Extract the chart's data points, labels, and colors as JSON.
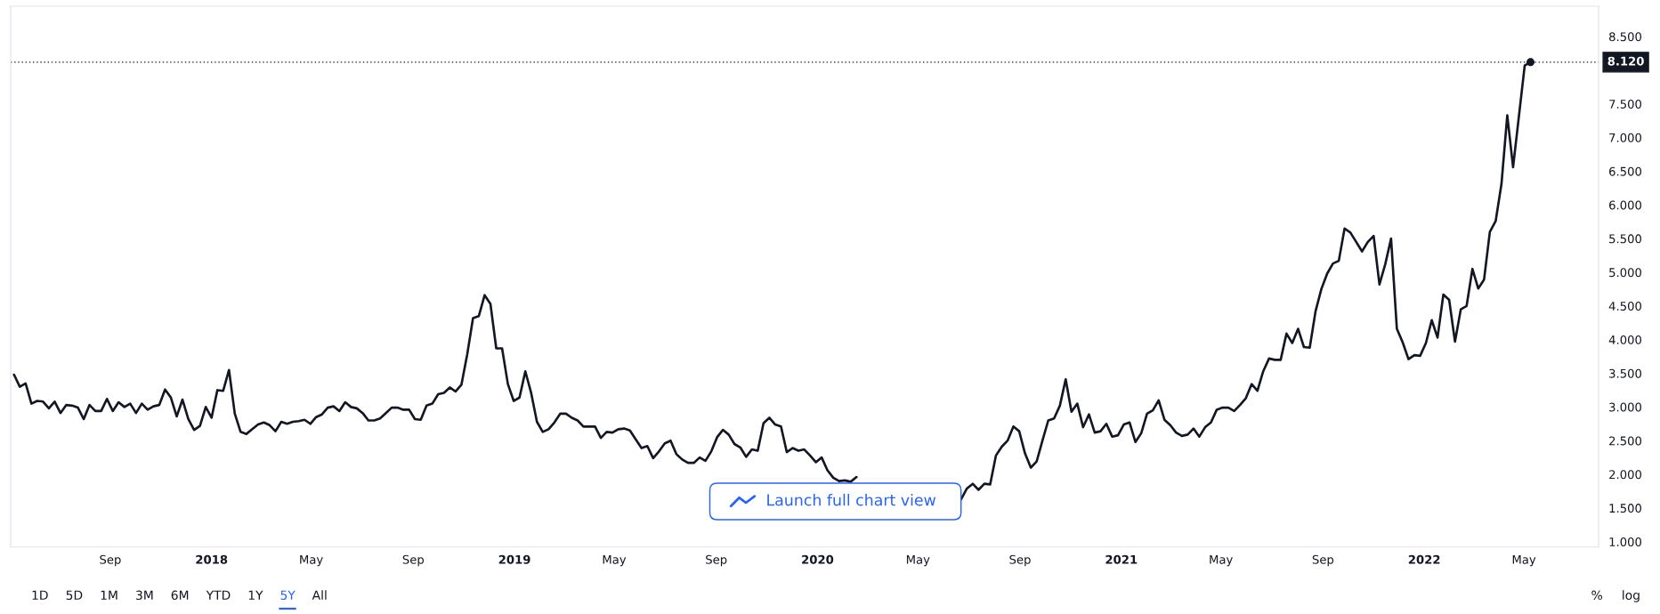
{
  "chart_data": {
    "type": "line",
    "x": [
      "2017-05-08",
      "2017-05-15",
      "2017-05-22",
      "2017-05-29",
      "2017-06-05",
      "2017-06-12",
      "2017-06-19",
      "2017-06-26",
      "2017-07-03",
      "2017-07-10",
      "2017-07-17",
      "2017-07-24",
      "2017-07-31",
      "2017-08-07",
      "2017-08-14",
      "2017-08-21",
      "2017-08-28",
      "2017-09-04",
      "2017-09-11",
      "2017-09-18",
      "2017-09-25",
      "2017-10-02",
      "2017-10-09",
      "2017-10-16",
      "2017-10-23",
      "2017-10-30",
      "2017-11-06",
      "2017-11-13",
      "2017-11-20",
      "2017-11-27",
      "2017-12-04",
      "2017-12-11",
      "2017-12-18",
      "2017-12-25",
      "2018-01-01",
      "2018-01-08",
      "2018-01-15",
      "2018-01-22",
      "2018-01-29",
      "2018-02-05",
      "2018-02-12",
      "2018-02-19",
      "2018-02-26",
      "2018-03-05",
      "2018-03-12",
      "2018-03-19",
      "2018-03-26",
      "2018-04-02",
      "2018-04-09",
      "2018-04-16",
      "2018-04-23",
      "2018-04-30",
      "2018-05-07",
      "2018-05-14",
      "2018-05-21",
      "2018-05-28",
      "2018-06-04",
      "2018-06-11",
      "2018-06-18",
      "2018-06-25",
      "2018-07-02",
      "2018-07-09",
      "2018-07-16",
      "2018-07-23",
      "2018-07-30",
      "2018-08-06",
      "2018-08-13",
      "2018-08-20",
      "2018-08-27",
      "2018-09-03",
      "2018-09-10",
      "2018-09-17",
      "2018-09-24",
      "2018-10-01",
      "2018-10-08",
      "2018-10-15",
      "2018-10-22",
      "2018-10-29",
      "2018-11-05",
      "2018-11-12",
      "2018-11-19",
      "2018-11-26",
      "2018-12-03",
      "2018-12-10",
      "2018-12-17",
      "2018-12-24",
      "2018-12-31",
      "2019-01-07",
      "2019-01-14",
      "2019-01-21",
      "2019-01-28",
      "2019-02-04",
      "2019-02-11",
      "2019-02-18",
      "2019-02-25",
      "2019-03-04",
      "2019-03-11",
      "2019-03-18",
      "2019-03-25",
      "2019-04-01",
      "2019-04-08",
      "2019-04-15",
      "2019-04-22",
      "2019-04-29",
      "2019-05-06",
      "2019-05-13",
      "2019-05-20",
      "2019-05-27",
      "2019-06-03",
      "2019-06-10",
      "2019-06-17",
      "2019-06-24",
      "2019-07-01",
      "2019-07-08",
      "2019-07-15",
      "2019-07-22",
      "2019-07-29",
      "2019-08-05",
      "2019-08-12",
      "2019-08-19",
      "2019-08-26",
      "2019-09-02",
      "2019-09-09",
      "2019-09-16",
      "2019-09-23",
      "2019-09-30",
      "2019-10-07",
      "2019-10-14",
      "2019-10-21",
      "2019-10-28",
      "2019-11-04",
      "2019-11-11",
      "2019-11-18",
      "2019-11-25",
      "2019-12-02",
      "2019-12-09",
      "2019-12-16",
      "2019-12-23",
      "2019-12-30",
      "2020-01-06",
      "2020-01-13",
      "2020-01-20",
      "2020-01-27",
      "2020-02-03",
      "2020-02-10",
      "2020-02-17",
      "2020-04-06",
      "2020-06-22",
      "2020-06-29",
      "2020-07-06",
      "2020-07-13",
      "2020-07-20",
      "2020-07-27",
      "2020-08-03",
      "2020-08-10",
      "2020-08-17",
      "2020-08-24",
      "2020-08-31",
      "2020-09-07",
      "2020-09-14",
      "2020-09-21",
      "2020-09-28",
      "2020-10-05",
      "2020-10-12",
      "2020-10-19",
      "2020-10-26",
      "2020-11-02",
      "2020-11-09",
      "2020-11-16",
      "2020-11-23",
      "2020-11-30",
      "2020-12-07",
      "2020-12-14",
      "2020-12-21",
      "2020-12-28",
      "2021-01-04",
      "2021-01-11",
      "2021-01-18",
      "2021-01-25",
      "2021-02-01",
      "2021-02-08",
      "2021-02-15",
      "2021-02-22",
      "2021-03-01",
      "2021-03-08",
      "2021-03-15",
      "2021-03-22",
      "2021-03-29",
      "2021-04-05",
      "2021-04-12",
      "2021-04-19",
      "2021-04-26",
      "2021-05-03",
      "2021-05-10",
      "2021-05-17",
      "2021-05-24",
      "2021-05-31",
      "2021-06-07",
      "2021-06-14",
      "2021-06-21",
      "2021-06-28",
      "2021-07-05",
      "2021-07-12",
      "2021-07-19",
      "2021-07-26",
      "2021-08-02",
      "2021-08-09",
      "2021-08-16",
      "2021-08-23",
      "2021-08-30",
      "2021-09-06",
      "2021-09-13",
      "2021-09-20",
      "2021-09-27",
      "2021-10-04",
      "2021-10-11",
      "2021-10-18",
      "2021-10-25",
      "2021-11-01",
      "2021-11-08",
      "2021-11-15",
      "2021-11-22",
      "2021-11-29",
      "2021-12-06",
      "2021-12-13",
      "2021-12-20",
      "2021-12-27",
      "2022-01-03",
      "2022-01-10",
      "2022-01-17",
      "2022-01-24",
      "2022-01-31",
      "2022-02-07",
      "2022-02-14",
      "2022-02-21",
      "2022-02-28",
      "2022-03-07",
      "2022-03-14",
      "2022-03-21",
      "2022-03-28",
      "2022-04-04",
      "2022-04-11",
      "2022-04-18",
      "2022-05-02",
      "2022-05-09"
    ],
    "series": [
      {
        "color": "#131722",
        "values": [
          3.48,
          3.3,
          3.35,
          3.05,
          3.09,
          3.08,
          2.98,
          3.08,
          2.91,
          3.03,
          3.02,
          2.99,
          2.82,
          3.03,
          2.94,
          2.94,
          3.12,
          2.94,
          3.07,
          3.0,
          3.05,
          2.91,
          3.05,
          2.96,
          3.01,
          3.03,
          3.26,
          3.14,
          2.86,
          3.11,
          2.82,
          2.66,
          2.72,
          3.0,
          2.84,
          3.25,
          3.24,
          3.55,
          2.9,
          2.63,
          2.6,
          2.67,
          2.74,
          2.77,
          2.73,
          2.64,
          2.78,
          2.75,
          2.78,
          2.79,
          2.81,
          2.75,
          2.85,
          2.89,
          2.99,
          3.01,
          2.94,
          3.07,
          3.0,
          2.98,
          2.91,
          2.8,
          2.8,
          2.83,
          2.91,
          2.99,
          2.99,
          2.96,
          2.96,
          2.82,
          2.81,
          3.02,
          3.05,
          3.19,
          3.21,
          3.29,
          3.23,
          3.33,
          3.78,
          4.32,
          4.35,
          4.66,
          4.53,
          3.87,
          3.87,
          3.34,
          3.09,
          3.14,
          3.53,
          3.21,
          2.78,
          2.63,
          2.67,
          2.77,
          2.9,
          2.9,
          2.84,
          2.8,
          2.71,
          2.71,
          2.71,
          2.54,
          2.63,
          2.62,
          2.67,
          2.68,
          2.65,
          2.52,
          2.39,
          2.42,
          2.24,
          2.34,
          2.46,
          2.5,
          2.3,
          2.22,
          2.17,
          2.17,
          2.25,
          2.2,
          2.34,
          2.55,
          2.66,
          2.59,
          2.45,
          2.4,
          2.26,
          2.37,
          2.35,
          2.76,
          2.84,
          2.74,
          2.71,
          2.33,
          2.39,
          2.35,
          2.37,
          2.28,
          2.18,
          2.25,
          2.06,
          1.95,
          1.9,
          1.91,
          1.89,
          1.96,
          null,
          1.63,
          1.79,
          1.86,
          1.77,
          1.86,
          1.85,
          2.28,
          2.41,
          2.5,
          2.71,
          2.64,
          2.31,
          2.1,
          2.19,
          2.5,
          2.8,
          2.83,
          3.02,
          3.41,
          2.93,
          3.05,
          2.7,
          2.89,
          2.62,
          2.64,
          2.75,
          2.56,
          2.58,
          2.74,
          2.77,
          2.48,
          2.61,
          2.9,
          2.95,
          3.1,
          2.81,
          2.73,
          2.62,
          2.57,
          2.59,
          2.68,
          2.56,
          2.7,
          2.77,
          2.96,
          2.99,
          2.99,
          2.94,
          3.03,
          3.13,
          3.34,
          3.24,
          3.53,
          3.72,
          3.7,
          3.7,
          4.09,
          3.95,
          4.16,
          3.89,
          3.88,
          4.42,
          4.75,
          4.98,
          5.13,
          5.17,
          5.65,
          5.59,
          5.45,
          5.31,
          5.45,
          5.54,
          4.82,
          5.12,
          5.5,
          4.16,
          3.96,
          3.71,
          3.77,
          3.76,
          3.95,
          4.29,
          4.03,
          4.67,
          4.59,
          3.97,
          4.45,
          4.5,
          5.05,
          4.76,
          4.89,
          5.6,
          5.76,
          6.31,
          7.33,
          6.56,
          8.07,
          8.12
        ]
      },
      {
        "type": "scatter",
        "marker": "circle",
        "color": "#131722",
        "x": [
          "2022-05-09"
        ],
        "values": [
          8.12
        ]
      }
    ],
    "xlim": [
      "2017-05-04",
      "2022-07-30"
    ],
    "xticks": [
      {
        "value": "2017-09-01",
        "label": "Sep"
      },
      {
        "value": "2018-01-01",
        "label": "2018"
      },
      {
        "value": "2018-05-01",
        "label": "May"
      },
      {
        "value": "2018-09-01",
        "label": "Sep"
      },
      {
        "value": "2019-01-01",
        "label": "2019"
      },
      {
        "value": "2019-05-01",
        "label": "May"
      },
      {
        "value": "2019-09-01",
        "label": "Sep"
      },
      {
        "value": "2020-01-01",
        "label": "2020"
      },
      {
        "value": "2020-05-01",
        "label": "May"
      },
      {
        "value": "2020-09-01",
        "label": "Sep"
      },
      {
        "value": "2021-01-01",
        "label": "2021"
      },
      {
        "value": "2021-05-01",
        "label": "May"
      },
      {
        "value": "2021-09-01",
        "label": "Sep"
      },
      {
        "value": "2022-01-01",
        "label": "2022"
      },
      {
        "value": "2022-05-01",
        "label": "May"
      }
    ],
    "ylim": [
      0.92,
      8.95
    ],
    "yticks": [
      {
        "value": 1,
        "label": "1.000"
      },
      {
        "value": 1.5,
        "label": "1.500"
      },
      {
        "value": 2,
        "label": "2.000"
      },
      {
        "value": 2.5,
        "label": "2.500"
      },
      {
        "value": 3,
        "label": "3.000"
      },
      {
        "value": 3.5,
        "label": "3.500"
      },
      {
        "value": 4,
        "label": "4.000"
      },
      {
        "value": 4.5,
        "label": "4.500"
      },
      {
        "value": 5,
        "label": "5.000"
      },
      {
        "value": 5.5,
        "label": "5.500"
      },
      {
        "value": 6,
        "label": "6.000"
      },
      {
        "value": 6.5,
        "label": "6.500"
      },
      {
        "value": 7,
        "label": "7.000"
      },
      {
        "value": 7.5,
        "label": "7.500"
      },
      {
        "value": 8.5,
        "label": "8.500"
      }
    ],
    "ref_lines": [
      {
        "axis": "y",
        "value": 8.12,
        "label": "8.120",
        "color": "#131722",
        "line_style": "dotted"
      }
    ],
    "annotations": [
      "Launch full chart view",
      "1D",
      "5D",
      "1M",
      "3M",
      "6M",
      "YTD",
      "1Y",
      "5Y",
      "All",
      "%",
      "log"
    ]
  }
}
